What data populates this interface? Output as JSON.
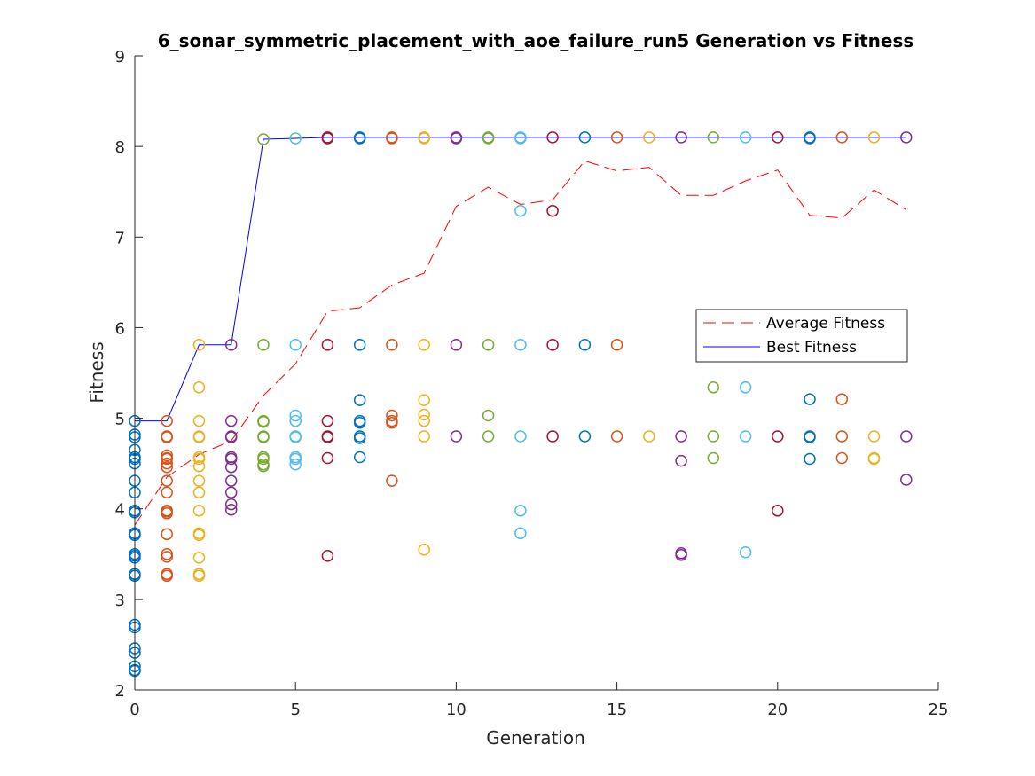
{
  "chart_data": {
    "type": "scatter",
    "title": "6_sonar_symmetric_placement_with_aoe_failure_run5 Generation vs Fitness",
    "xlabel": "Generation",
    "ylabel": "Fitness",
    "xlim": [
      0,
      25
    ],
    "ylim": [
      2,
      9
    ],
    "xticks": [
      0,
      5,
      10,
      15,
      20,
      25
    ],
    "yticks": [
      2,
      3,
      4,
      5,
      6,
      7,
      8,
      9
    ],
    "xtick_labels": [
      "0",
      "5",
      "10",
      "15",
      "20",
      "25"
    ],
    "ytick_labels": [
      "2",
      "3",
      "4",
      "5",
      "6",
      "7",
      "8",
      "9"
    ],
    "grid": false,
    "legend_placement": "right",
    "marker_colors": [
      "#0072BD",
      "#D95319",
      "#EDB120",
      "#7E2F8E",
      "#77AC30",
      "#4DBEEE",
      "#A2142F"
    ],
    "lines": [
      {
        "name": "Average Fitness",
        "color": "#FF0000",
        "style": "dashed",
        "x": [
          0,
          1,
          2,
          3,
          4,
          5,
          6,
          7,
          8,
          9,
          10,
          11,
          12,
          13,
          14,
          15,
          16,
          17,
          18,
          19,
          20,
          21,
          22,
          23,
          24
        ],
        "y": [
          3.82,
          4.35,
          4.6,
          4.75,
          5.25,
          5.6,
          6.18,
          6.22,
          6.47,
          6.6,
          7.34,
          7.55,
          7.36,
          7.41,
          7.84,
          7.73,
          7.77,
          7.46,
          7.46,
          7.62,
          7.74,
          7.24,
          7.21,
          7.52,
          7.3
        ]
      },
      {
        "name": "Best Fitness",
        "color": "#0000FF",
        "style": "solid",
        "x": [
          0,
          1,
          2,
          3,
          4,
          5,
          6,
          7,
          8,
          9,
          10,
          11,
          12,
          13,
          14,
          15,
          16,
          17,
          18,
          19,
          20,
          21,
          22,
          23,
          24
        ],
        "y": [
          4.97,
          4.97,
          5.81,
          5.81,
          8.08,
          8.09,
          8.1,
          8.1,
          8.1,
          8.1,
          8.1,
          8.1,
          8.1,
          8.1,
          8.1,
          8.1,
          8.1,
          8.1,
          8.1,
          8.1,
          8.1,
          8.1,
          8.1,
          8.1,
          8.1
        ]
      }
    ],
    "scatter_groups": [
      {
        "x": 0,
        "color_index": 0,
        "y": [
          4.97,
          4.82,
          4.79,
          4.65,
          4.57,
          4.55,
          4.5,
          4.31,
          4.18,
          3.98,
          3.96,
          3.73,
          3.71,
          3.5,
          3.48,
          3.46,
          3.28,
          3.26,
          2.72,
          2.69,
          2.46,
          2.41,
          2.26,
          2.22,
          2.21
        ]
      },
      {
        "x": 1,
        "color_index": 1,
        "y": [
          4.97,
          4.8,
          4.79,
          4.59,
          4.56,
          4.55,
          4.5,
          4.46,
          4.31,
          4.18,
          3.98,
          3.97,
          3.95,
          3.72,
          3.5,
          3.47,
          3.28,
          3.26
        ]
      },
      {
        "x": 2,
        "color_index": 2,
        "y": [
          5.81,
          5.34,
          4.97,
          4.8,
          4.79,
          4.57,
          4.55,
          4.47,
          4.31,
          4.18,
          3.98,
          3.73,
          3.71,
          3.46,
          3.28,
          3.26
        ]
      },
      {
        "x": 3,
        "color_index": 3,
        "y": [
          5.81,
          4.97,
          4.8,
          4.79,
          4.57,
          4.55,
          4.46,
          4.31,
          4.18,
          4.05,
          3.99
        ]
      },
      {
        "x": 4,
        "color_index": 4,
        "y": [
          8.08,
          5.81,
          4.97,
          4.96,
          4.8,
          4.79,
          4.57,
          4.55,
          4.49,
          4.47
        ]
      },
      {
        "x": 5,
        "color_index": 5,
        "y": [
          8.09,
          5.81,
          5.03,
          4.97,
          4.8,
          4.79,
          4.57,
          4.55,
          4.49
        ]
      },
      {
        "x": 6,
        "color_index": 6,
        "y": [
          8.1,
          8.09,
          5.81,
          4.97,
          4.8,
          4.79,
          4.56,
          3.48
        ]
      },
      {
        "x": 7,
        "color_index": 0,
        "y": [
          8.1,
          8.09,
          5.81,
          5.2,
          4.97,
          4.95,
          4.8,
          4.78,
          4.57
        ]
      },
      {
        "x": 8,
        "color_index": 1,
        "y": [
          8.1,
          8.09,
          5.81,
          5.03,
          4.97,
          4.95,
          4.31
        ]
      },
      {
        "x": 9,
        "color_index": 2,
        "y": [
          8.1,
          8.09,
          5.81,
          5.2,
          5.04,
          4.97,
          4.8,
          3.55
        ]
      },
      {
        "x": 10,
        "color_index": 3,
        "y": [
          8.1,
          8.09,
          5.81,
          4.8
        ]
      },
      {
        "x": 11,
        "color_index": 4,
        "y": [
          8.1,
          8.09,
          5.81,
          5.03,
          4.8
        ]
      },
      {
        "x": 12,
        "color_index": 5,
        "y": [
          8.1,
          8.09,
          7.29,
          5.81,
          4.8,
          3.98,
          3.73
        ]
      },
      {
        "x": 13,
        "color_index": 6,
        "y": [
          8.1,
          7.29,
          5.81,
          4.8
        ]
      },
      {
        "x": 14,
        "color_index": 0,
        "y": [
          8.1,
          5.81,
          4.8
        ]
      },
      {
        "x": 15,
        "color_index": 1,
        "y": [
          8.1,
          5.81,
          4.8
        ]
      },
      {
        "x": 16,
        "color_index": 2,
        "y": [
          8.1,
          4.8
        ]
      },
      {
        "x": 17,
        "color_index": 3,
        "y": [
          8.1,
          4.8,
          4.53,
          3.51,
          3.49
        ]
      },
      {
        "x": 18,
        "color_index": 4,
        "y": [
          8.1,
          5.34,
          4.8,
          4.56
        ]
      },
      {
        "x": 19,
        "color_index": 5,
        "y": [
          8.1,
          5.34,
          4.8,
          3.52
        ]
      },
      {
        "x": 20,
        "color_index": 6,
        "y": [
          8.1,
          4.8,
          3.98
        ]
      },
      {
        "x": 21,
        "color_index": 0,
        "y": [
          8.1,
          8.09,
          5.21,
          4.8,
          4.79,
          4.55
        ]
      },
      {
        "x": 22,
        "color_index": 1,
        "y": [
          8.1,
          5.21,
          4.8,
          4.56
        ]
      },
      {
        "x": 23,
        "color_index": 2,
        "y": [
          8.1,
          4.8,
          4.56,
          4.55
        ]
      },
      {
        "x": 24,
        "color_index": 3,
        "y": [
          8.1,
          4.8,
          4.32
        ]
      }
    ]
  }
}
